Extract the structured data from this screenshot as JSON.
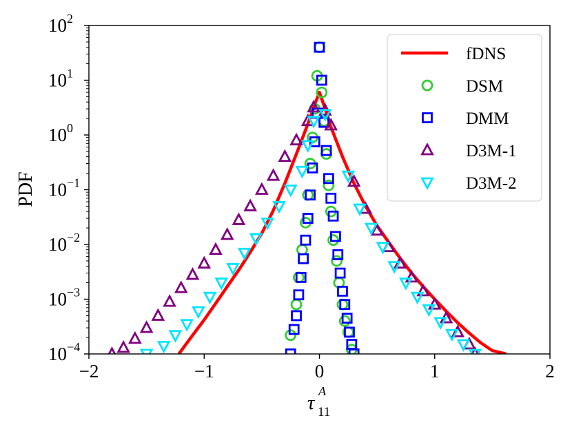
{
  "chart_data": {
    "type": "line",
    "title": "",
    "xlabel_base": "τ",
    "xlabel_sup": "A",
    "xlabel_sub": "11",
    "ylabel": "PDF",
    "xlim": [
      -2,
      2
    ],
    "ylim": [
      0.0001,
      100
    ],
    "yscale": "log",
    "grid": false,
    "legend_position": "top-right",
    "x_ticks": [
      {
        "value": -2,
        "label": "−2"
      },
      {
        "value": -1,
        "label": "−1"
      },
      {
        "value": 0,
        "label": "0"
      },
      {
        "value": 1,
        "label": "1"
      },
      {
        "value": 2,
        "label": "2"
      }
    ],
    "y_ticks": [
      {
        "value": 0.0001,
        "base": "10",
        "exp": "−4"
      },
      {
        "value": 0.001,
        "base": "10",
        "exp": "−3"
      },
      {
        "value": 0.01,
        "base": "10",
        "exp": "−2"
      },
      {
        "value": 0.1,
        "base": "10",
        "exp": "−1"
      },
      {
        "value": 1,
        "base": "10",
        "exp": "0"
      },
      {
        "value": 10,
        "base": "10",
        "exp": "1"
      },
      {
        "value": 100,
        "base": "10",
        "exp": "2"
      }
    ],
    "series": [
      {
        "name": "fDNS",
        "kind": "line",
        "color": "#ff0000",
        "x": [
          -1.22,
          -1.1,
          -1.0,
          -0.9,
          -0.8,
          -0.7,
          -0.6,
          -0.5,
          -0.4,
          -0.3,
          -0.2,
          -0.1,
          -0.05,
          0.0,
          0.05,
          0.1,
          0.2,
          0.3,
          0.4,
          0.5,
          0.6,
          0.7,
          0.8,
          0.9,
          1.0,
          1.1,
          1.2,
          1.3,
          1.4,
          1.5,
          1.62
        ],
        "y": [
          0.0001,
          0.00022,
          0.00042,
          0.00084,
          0.0017,
          0.0034,
          0.0072,
          0.016,
          0.042,
          0.13,
          0.45,
          1.6,
          3.2,
          6.0,
          3.0,
          1.4,
          0.4,
          0.13,
          0.05,
          0.022,
          0.011,
          0.0056,
          0.003,
          0.0017,
          0.001,
          0.0006,
          0.00037,
          0.00024,
          0.00016,
          0.000115,
          0.0001
        ]
      },
      {
        "name": "DSM",
        "kind": "marker",
        "marker": "circle",
        "color": "#33cc33",
        "x": [
          -0.25,
          -0.2,
          -0.18,
          -0.15,
          -0.12,
          -0.1,
          -0.08,
          -0.06,
          -0.04,
          -0.02,
          0.0,
          0.02,
          0.04,
          0.06,
          0.08,
          0.1,
          0.12,
          0.15,
          0.17,
          0.2,
          0.22,
          0.25,
          0.28
        ],
        "y": [
          0.00022,
          0.0008,
          0.0025,
          0.008,
          0.025,
          0.08,
          0.3,
          0.9,
          3.0,
          12.0,
          40.0,
          6.0,
          1.8,
          0.45,
          0.12,
          0.04,
          0.012,
          0.005,
          0.002,
          0.0008,
          0.0004,
          0.00025,
          0.00012
        ]
      },
      {
        "name": "DMM",
        "kind": "marker",
        "marker": "square",
        "color": "#0000ff",
        "x": [
          -0.25,
          -0.22,
          -0.2,
          -0.18,
          -0.16,
          -0.14,
          -0.12,
          -0.1,
          -0.08,
          -0.06,
          -0.04,
          -0.02,
          0.0,
          0.02,
          0.04,
          0.06,
          0.08,
          0.1,
          0.12,
          0.14,
          0.16,
          0.18,
          0.2,
          0.22,
          0.24,
          0.26,
          0.28,
          0.3
        ],
        "y": [
          0.0001,
          0.00028,
          0.0005,
          0.0012,
          0.0025,
          0.0055,
          0.012,
          0.03,
          0.08,
          0.25,
          0.75,
          2.5,
          40.0,
          10.0,
          1.7,
          0.52,
          0.16,
          0.07,
          0.033,
          0.014,
          0.0065,
          0.003,
          0.0014,
          0.0008,
          0.00045,
          0.00025,
          0.00015,
          0.0001
        ]
      },
      {
        "name": "D3M-1",
        "kind": "marker",
        "marker": "triangle-up",
        "color": "#800080",
        "x": [
          -1.8,
          -1.7,
          -1.6,
          -1.5,
          -1.4,
          -1.3,
          -1.2,
          -1.1,
          -1.0,
          -0.9,
          -0.8,
          -0.7,
          -0.6,
          -0.5,
          -0.4,
          -0.3,
          -0.2,
          -0.1,
          -0.05,
          0.05,
          0.1,
          0.3,
          0.4,
          0.5,
          0.6,
          0.7,
          0.8,
          0.9,
          1.0,
          1.1,
          1.2,
          1.3,
          1.35
        ],
        "y": [
          0.0001,
          0.00013,
          0.00019,
          0.0003,
          0.0005,
          0.0009,
          0.0016,
          0.0028,
          0.0045,
          0.008,
          0.015,
          0.028,
          0.05,
          0.1,
          0.18,
          0.4,
          0.8,
          1.8,
          3.2,
          2.8,
          1.5,
          0.14,
          0.045,
          0.018,
          0.009,
          0.0045,
          0.0025,
          0.0014,
          0.0008,
          0.00045,
          0.00025,
          0.00015,
          0.0001
        ]
      },
      {
        "name": "D3M-2",
        "kind": "marker",
        "marker": "triangle-down",
        "color": "#00e5ff",
        "x": [
          -1.5,
          -1.35,
          -1.25,
          -1.15,
          -1.05,
          -0.95,
          -0.85,
          -0.75,
          -0.65,
          -0.55,
          -0.45,
          -0.35,
          -0.25,
          -0.15,
          -0.1,
          -0.05,
          0.05,
          0.25,
          0.35,
          0.45,
          0.55,
          0.65,
          0.75,
          0.85,
          0.95,
          1.05,
          1.15,
          1.25,
          1.35
        ],
        "y": [
          0.0001,
          0.00014,
          0.00022,
          0.00035,
          0.0006,
          0.0011,
          0.002,
          0.0037,
          0.007,
          0.013,
          0.025,
          0.05,
          0.1,
          0.22,
          0.65,
          1.8,
          2.4,
          0.18,
          0.045,
          0.02,
          0.009,
          0.004,
          0.002,
          0.0011,
          0.00065,
          0.00038,
          0.00023,
          0.00015,
          0.0001
        ]
      }
    ]
  }
}
